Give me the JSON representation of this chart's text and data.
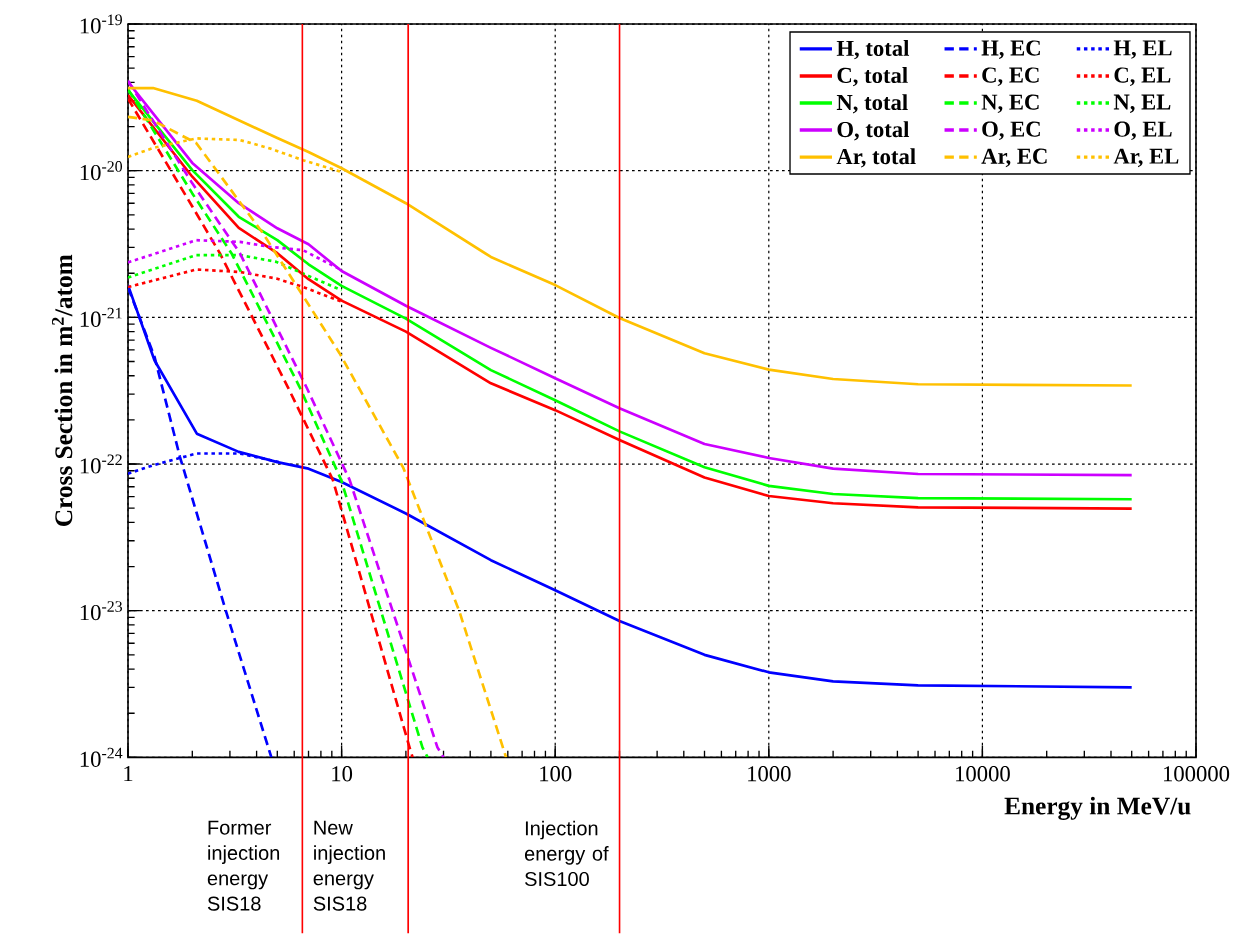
{
  "chart_data": {
    "type": "line",
    "xlabel": "Energy in MeV/u",
    "ylabel": "Cross Section in m$^{2}$/atom",
    "log": "xy",
    "xlim": [
      1,
      100000
    ],
    "ylim": [
      1e-24,
      1e-19
    ],
    "xticks": [
      1,
      10,
      100,
      1000,
      10000,
      100000
    ],
    "yticks": [
      {
        "value": 1e-24,
        "label": "10$^{-24}$"
      },
      {
        "value": 1e-23,
        "label": "10$^{-23}$"
      },
      {
        "value": 1e-22,
        "label": "10$^{-22}$"
      },
      {
        "value": 1e-21,
        "label": "10$^{-21}$"
      },
      {
        "value": 1e-20,
        "label": "10$^{-20}$"
      },
      {
        "value": 1e-19,
        "label": "10$^{-19}$"
      }
    ],
    "grid": true,
    "legend": "top right",
    "marker": "none",
    "series": [
      {
        "name": "H, total",
        "color": "#0000ff",
        "line_style": "solid",
        "x": [
          1,
          1.33,
          2.1,
          3.3,
          5,
          7,
          10,
          20,
          50,
          100,
          200,
          500,
          1000,
          2000,
          5000,
          50000
        ],
        "values": [
          1.66e-21,
          5.1e-22,
          1.61e-22,
          1.21e-22,
          1.03e-22,
          9.3e-23,
          7.55e-23,
          4.6e-23,
          2.21e-23,
          1.38e-23,
          8.5e-24,
          5e-24,
          3.8e-24,
          3.3e-24,
          3.1e-24,
          3e-24
        ]
      },
      {
        "name": "H, EC",
        "color": "#0000ff",
        "line_style": "dashed",
        "x": [
          1,
          1.33,
          1.75,
          2.87,
          4.69
        ],
        "values": [
          1.6e-21,
          5.4e-22,
          1.12e-22,
          1e-23,
          1e-24
        ]
      },
      {
        "name": "H, EL",
        "color": "#0000ff",
        "line_style": "dotted",
        "x": [
          1,
          1.31,
          2.09,
          3.34,
          5.13
        ],
        "values": [
          8.6e-23,
          9.8e-23,
          1.18e-22,
          1.18e-22,
          1.03e-22
        ]
      },
      {
        "name": "C, total",
        "color": "#ff0000",
        "line_style": "solid",
        "x": [
          1,
          2,
          3.3,
          5,
          7,
          10,
          20,
          50,
          100,
          200,
          500,
          1000,
          2000,
          5000,
          50000
        ],
        "values": [
          3.28e-20,
          9.1e-21,
          4.07e-21,
          2.74e-21,
          1.82e-21,
          1.3e-21,
          8e-22,
          3.55e-22,
          2.33e-22,
          1.46e-22,
          8.1e-23,
          6.05e-23,
          5.4e-23,
          5.07e-23,
          4.97e-23
        ]
      },
      {
        "name": "C, EC",
        "color": "#ff0000",
        "line_style": "dashed",
        "x": [
          1,
          2,
          2.69,
          5.6,
          9.1,
          20.8,
          21.5
        ],
        "values": [
          3.1e-20,
          5.7e-21,
          2.74e-21,
          3.35e-22,
          7.8e-23,
          1.17e-24,
          1e-24
        ]
      },
      {
        "name": "C, EL",
        "color": "#ff0000",
        "line_style": "dotted",
        "x": [
          1,
          2.09,
          3.34,
          4.95,
          6.6,
          10
        ],
        "values": [
          1.61e-21,
          2.12e-21,
          2.04e-21,
          1.84e-21,
          1.61e-21,
          1.28e-21
        ]
      },
      {
        "name": "N, total",
        "color": "#00ff00",
        "line_style": "solid",
        "x": [
          1,
          2,
          3.3,
          5,
          7,
          10,
          20,
          50,
          100,
          200,
          500,
          1000,
          2000,
          5000,
          50000
        ],
        "values": [
          3.55e-20,
          1.01e-20,
          4.85e-21,
          3.36e-21,
          2.3e-21,
          1.64e-21,
          9.8e-22,
          4.37e-22,
          2.72e-22,
          1.67e-22,
          9.5e-23,
          7.1e-23,
          6.25e-23,
          5.85e-23,
          5.75e-23
        ]
      },
      {
        "name": "N, EC",
        "color": "#00ff00",
        "line_style": "dashed",
        "x": [
          1,
          2,
          3.05,
          6.36,
          9.95,
          23.9,
          25.3
        ],
        "values": [
          3.6e-20,
          7e-21,
          2.74e-21,
          3.35e-22,
          7.8e-23,
          1.17e-24,
          1e-24
        ]
      },
      {
        "name": "N, EL",
        "color": "#00ff00",
        "line_style": "dotted",
        "x": [
          1,
          2.09,
          3.34,
          4.95,
          6.6,
          10
        ],
        "values": [
          1.87e-21,
          2.66e-21,
          2.66e-21,
          2.39e-21,
          1.99e-21,
          1.53e-21
        ]
      },
      {
        "name": "O, total",
        "color": "#cc00ff",
        "line_style": "solid",
        "x": [
          1,
          2,
          3.3,
          5,
          7,
          10,
          20,
          50,
          100,
          200,
          500,
          1000,
          2000,
          5000,
          50000
        ],
        "values": [
          4.04e-20,
          1.13e-20,
          6e-21,
          4.05e-21,
          3.15e-21,
          2.07e-21,
          1.2e-21,
          6.2e-22,
          3.85e-22,
          2.4e-22,
          1.37e-22,
          1.1e-22,
          9.3e-23,
          8.55e-23,
          8.4e-23
        ]
      },
      {
        "name": "O, EC",
        "color": "#cc00ff",
        "line_style": "dashed",
        "x": [
          1,
          2,
          3.34,
          6.84,
          10.9,
          28.1,
          30
        ],
        "values": [
          4.1e-20,
          8.2e-21,
          2.74e-21,
          3.35e-22,
          7.8e-23,
          1.17e-24,
          1e-24
        ]
      },
      {
        "name": "O, EL",
        "color": "#cc00ff",
        "line_style": "dotted",
        "x": [
          1,
          2.09,
          3.34,
          4.6,
          6.6,
          10
        ],
        "values": [
          2.37e-21,
          3.36e-21,
          3.27e-21,
          3.03e-21,
          2.87e-21,
          2.1e-21
        ]
      },
      {
        "name": "Ar, total",
        "color": "#ffc000",
        "line_style": "solid",
        "x": [
          1,
          1.31,
          2.1,
          5,
          7,
          10,
          20,
          50,
          100,
          200,
          500,
          1000,
          2000,
          5000,
          50000
        ],
        "values": [
          3.66e-20,
          3.66e-20,
          3e-20,
          1.67e-20,
          1.34e-20,
          1.04e-20,
          6e-21,
          2.58e-21,
          1.66e-21,
          9.9e-22,
          5.7e-22,
          4.4e-22,
          3.8e-22,
          3.5e-22,
          3.43e-22
        ]
      },
      {
        "name": "Ar, EC",
        "color": "#ffc000",
        "line_style": "dashed",
        "x": [
          1,
          1.31,
          2.09,
          4.29,
          6.48,
          9.78,
          19.4,
          35.5,
          58.9
        ],
        "values": [
          2.33e-20,
          2.2e-20,
          1.54e-20,
          3.73e-21,
          1.46e-21,
          5.7e-22,
          9.5e-23,
          1e-23,
          1e-24
        ]
      },
      {
        "name": "Ar, EL",
        "color": "#ffc000",
        "line_style": "dotted",
        "x": [
          1,
          1.31,
          2.09,
          3.34,
          4.6,
          6.6,
          10
        ],
        "values": [
          1.24e-20,
          1.43e-20,
          1.66e-20,
          1.62e-20,
          1.42e-20,
          1.18e-20,
          9.8e-21
        ]
      }
    ],
    "ref_lines": [
      {
        "axis": "x",
        "value": 6.55,
        "label": "Former injection energy SIS18",
        "color": "#ff0000"
      },
      {
        "axis": "x",
        "value": 20.5,
        "label": "New injection energy SIS18",
        "color": "#ff0000"
      },
      {
        "axis": "x",
        "value": 200,
        "label": "Injection energy of SIS100",
        "color": "#ff0000"
      }
    ]
  }
}
